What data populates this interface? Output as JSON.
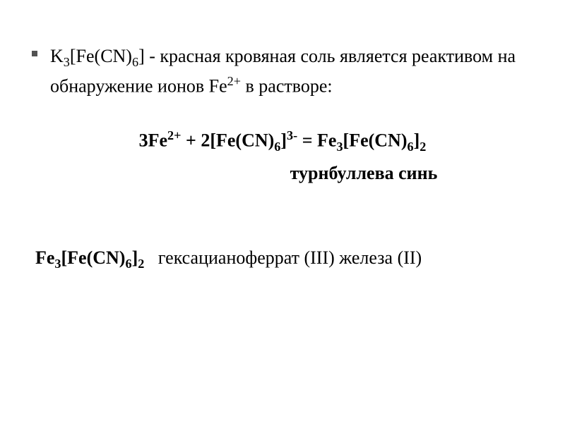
{
  "intro": {
    "formula_pre": "K",
    "formula_sub1": "3",
    "formula_mid": "[Fe(CN)",
    "formula_sub2": "6",
    "formula_end": "]",
    "dash": " - ",
    "text_part1": "красная кровяная соль является реактивом на обнаружение ионов Fe",
    "text_sup": "2+",
    "text_part2": " в растворе:"
  },
  "equation": {
    "lhs_coef": "3Fe",
    "lhs_sup": "2+",
    "plus": " + 2[Fe(CN)",
    "sub6_1": "6",
    "bracket1": "]",
    "sup3minus": "3-",
    "equals": " = Fe",
    "sub3": "3",
    "bracket2": "[Fe(CN)",
    "sub6_2": "6",
    "bracket3": "]",
    "sub2": "2"
  },
  "label": "турнбуллева синь",
  "name": {
    "formula_pre": "Fe",
    "formula_sub1": "3",
    "formula_mid": "[Fe(CN)",
    "formula_sub2": "6",
    "formula_end": "]",
    "formula_sub3": "2",
    "spacer": "   ",
    "text": "гексацианоферрат (III) железа (II)"
  },
  "colors": {
    "background": "#ffffff",
    "text": "#000000",
    "bullet": "#525252"
  },
  "typography": {
    "font_family": "Times New Roman",
    "base_size_pt": 20,
    "line_height": 1.5
  }
}
